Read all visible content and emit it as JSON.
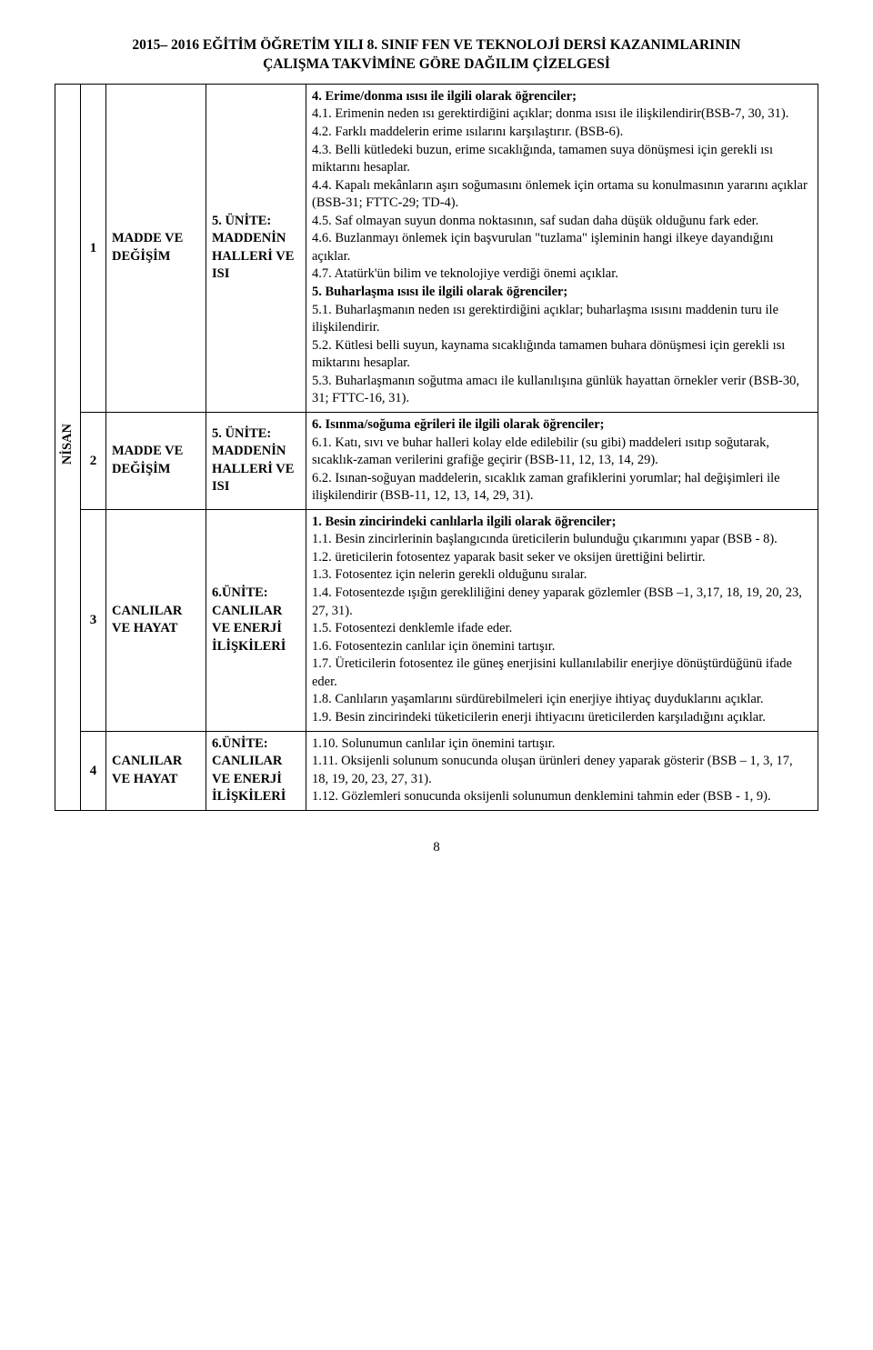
{
  "header": {
    "line1": "2015– 2016 EĞİTİM ÖĞRETİM YILI 8. SINIF FEN VE TEKNOLOJİ DERSİ KAZANIMLARININ",
    "line2": "ÇALIŞMA TAKVİMİNE GÖRE DAĞILIM ÇİZELGESİ"
  },
  "month": "NİSAN",
  "rows": [
    {
      "week": "1",
      "subject": "MADDE VE DEĞİŞİM",
      "unit": "5. ÜNİTE: MADDENİN HALLERİ VE ISI",
      "content": [
        {
          "bold": true,
          "text": "4. Erime/donma ısısı ile ilgili olarak öğrenciler;"
        },
        {
          "bold": false,
          "text": "4.1. Erimenin neden ısı gerektirdiğini açıklar; donma ısısı ile ilişkilendirir(BSB-7, 30, 31)."
        },
        {
          "bold": false,
          "text": "4.2. Farklı maddelerin erime ısılarını karşılaştırır. (BSB-6)."
        },
        {
          "bold": false,
          "text": "4.3. Belli kütledeki buzun, erime sıcaklığında, tamamen suya dönüşmesi için gerekli ısı miktarını hesaplar."
        },
        {
          "bold": false,
          "text": "4.4. Kapalı mekânların aşırı soğumasını önlemek için ortama su konulmasının yararını açıklar (BSB-31; FTTC-29; TD-4)."
        },
        {
          "bold": false,
          "text": "4.5. Saf olmayan suyun donma noktasının, saf sudan daha düşük olduğunu fark eder."
        },
        {
          "bold": false,
          "text": "4.6. Buzlanmayı önlemek için başvurulan \"tuzlama\" işleminin hangi ilkeye dayandığını açıklar."
        },
        {
          "bold": false,
          "text": "4.7. Atatürk'ün bilim ve teknolojiye verdiği önemi açıklar."
        },
        {
          "bold": true,
          "text": "5. Buharlaşma ısısı ile ilgili olarak öğrenciler;"
        },
        {
          "bold": false,
          "text": "5.1. Buharlaşmanın neden ısı gerektirdiğini açıklar; buharlaşma ısısını maddenin turu ile ilişkilendirir."
        },
        {
          "bold": false,
          "text": "5.2. Kütlesi belli suyun, kaynama sıcaklığında tamamen buhara dönüşmesi için gerekli ısı miktarını hesaplar."
        },
        {
          "bold": false,
          "text": "5.3. Buharlaşmanın soğutma amacı ile kullanılışına günlük hayattan örnekler verir (BSB-30, 31; FTTC-16, 31)."
        }
      ]
    },
    {
      "week": "2",
      "subject": "MADDE VE DEĞİŞİM",
      "unit": "5. ÜNİTE: MADDENİN HALLERİ VE ISI",
      "content": [
        {
          "bold": true,
          "text": "6. Isınma/soğuma eğrileri ile ilgili olarak öğrenciler;"
        },
        {
          "bold": false,
          "text": "6.1. Katı, sıvı ve buhar halleri kolay elde edilebilir (su gibi) maddeleri ısıtıp soğutarak, sıcaklık-zaman verilerini grafiğe geçirir (BSB-11, 12, 13, 14, 29)."
        },
        {
          "bold": false,
          "text": "6.2. Isınan-soğuyan maddelerin, sıcaklık zaman grafiklerini yorumlar; hal değişimleri ile ilişkilendirir (BSB-11, 12, 13, 14, 29, 31)."
        }
      ]
    },
    {
      "week": "3",
      "subject": "CANLILAR VE HAYAT",
      "unit": "6.ÜNİTE: CANLILAR VE ENERJİ İLİŞKİLERİ",
      "content": [
        {
          "bold": true,
          "text": "1. Besin zincirindeki canlılarla ilgili olarak öğrenciler;"
        },
        {
          "bold": false,
          "text": "1.1. Besin zincirlerinin başlangıcında üreticilerin bulunduğu çıkarımını yapar (BSB - 8)."
        },
        {
          "bold": false,
          "text": "1.2. üreticilerin fotosentez yaparak basit seker ve oksijen ürettiğini belirtir."
        },
        {
          "bold": false,
          "text": "1.3. Fotosentez için nelerin gerekli olduğunu sıralar."
        },
        {
          "bold": false,
          "text": "1.4. Fotosentezde ışığın gerekliliğini deney yaparak gözlemler (BSB –1, 3,17, 18, 19, 20, 23, 27, 31)."
        },
        {
          "bold": false,
          "text": "1.5. Fotosentezi denklemle ifade eder."
        },
        {
          "bold": false,
          "text": "1.6. Fotosentezin canlılar için önemini tartışır."
        },
        {
          "bold": false,
          "text": "1.7. Üreticilerin fotosentez ile güneş enerjisini kullanılabilir enerjiye dönüştürdüğünü ifade eder."
        },
        {
          "bold": false,
          "text": "1.8. Canlıların yaşamlarını sürdürebilmeleri için enerjiye ihtiyaç duyduklarını açıklar."
        },
        {
          "bold": false,
          "text": "1.9. Besin zincirindeki tüketicilerin enerji ihtiyacını üreticilerden karşıladığını açıklar."
        }
      ]
    },
    {
      "week": "4",
      "subject": "CANLILAR VE HAYAT",
      "unit": "6.ÜNİTE: CANLILAR VE ENERJİ İLİŞKİLERİ",
      "content": [
        {
          "bold": false,
          "text": "1.10. Solunumun canlılar için önemini tartışır."
        },
        {
          "bold": false,
          "text": "1.11. Oksijenli solunum sonucunda oluşan ürünleri deney yaparak gösterir (BSB – 1, 3, 17, 18, 19, 20, 23, 27, 31)."
        },
        {
          "bold": false,
          "text": "1.12. Gözlemleri sonucunda oksijenli solunumun denklemini tahmin eder (BSB - 1, 9)."
        }
      ]
    }
  ],
  "pageNumber": "8"
}
